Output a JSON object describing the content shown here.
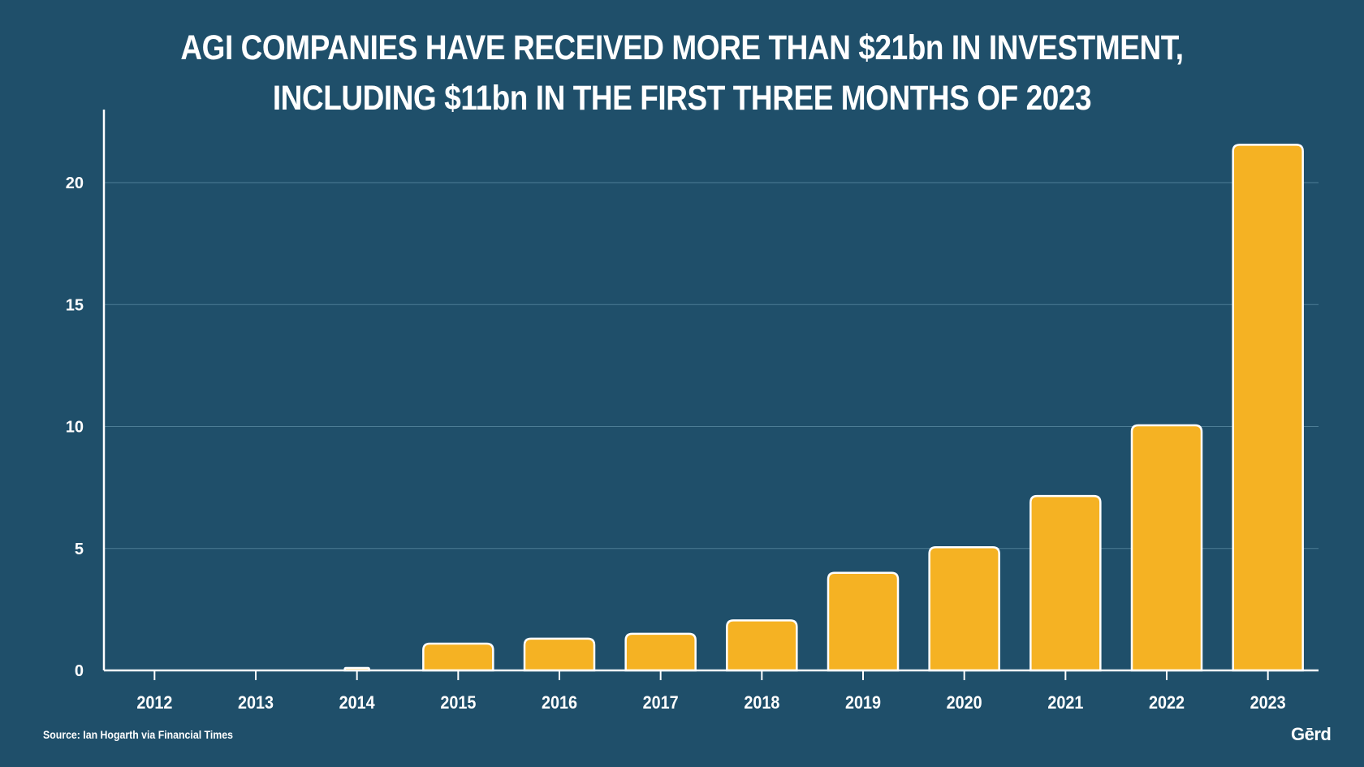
{
  "title": {
    "line1": "AGI COMPANIES HAVE RECEIVED MORE THAN $21bn IN INVESTMENT,",
    "line2": "INCLUDING $11bn IN THE FIRST THREE MONTHS OF 2023"
  },
  "source": "Source: Ian Hogarth via Financial Times",
  "logo": "Gērd",
  "colors": {
    "background": "#1f4f6a",
    "bar_fill": "#f5b223",
    "bar_stroke": "#ffffff",
    "gridline": "#4d7d95"
  },
  "chart_data": {
    "type": "bar",
    "title": "AGI COMPANIES HAVE RECEIVED MORE THAN $21bn IN INVESTMENT, INCLUDING $11bn IN THE FIRST THREE MONTHS OF 2023",
    "categories": [
      "2012",
      "2013",
      "2014",
      "2015",
      "2016",
      "2017",
      "2018",
      "2019",
      "2020",
      "2021",
      "2022",
      "2023"
    ],
    "values": [
      0,
      0,
      0.1,
      1.1,
      1.3,
      1.5,
      2.05,
      4.0,
      5.05,
      7.15,
      10.05,
      21.55
    ],
    "xlabel": "",
    "ylabel": "",
    "ylim": [
      0,
      23
    ],
    "yticks": [
      0,
      5,
      10,
      15,
      20
    ],
    "grid": true,
    "legend": "none"
  }
}
